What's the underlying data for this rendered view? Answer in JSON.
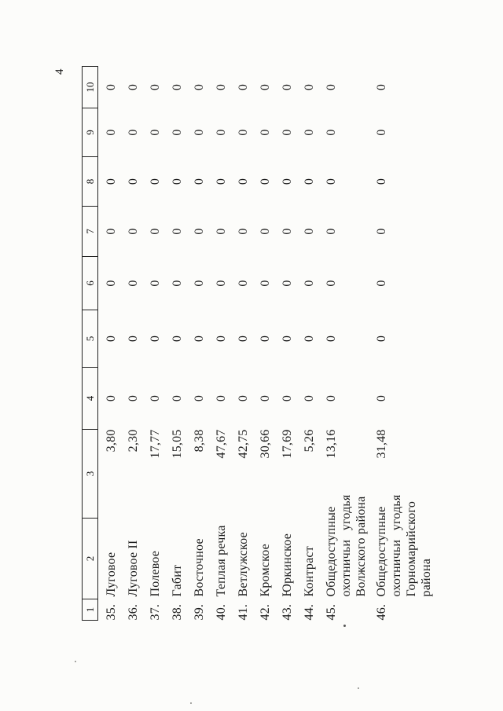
{
  "page": {
    "number": "4"
  },
  "table": {
    "column_headers": [
      "1",
      "2",
      "3",
      "4",
      "5",
      "6",
      "7",
      "8",
      "9",
      "10"
    ],
    "rows": [
      {
        "num": "35.",
        "name": "Луговое",
        "area": "3,80",
        "zero_values": [
          "0",
          "0",
          "0",
          "0",
          "0",
          "0",
          "0"
        ]
      },
      {
        "num": "36.",
        "name": "Луговое II",
        "area": "2,30",
        "zero_values": [
          "0",
          "0",
          "0",
          "0",
          "0",
          "0",
          "0"
        ]
      },
      {
        "num": "37.",
        "name": "Полевое",
        "area": "17,77",
        "zero_values": [
          "0",
          "0",
          "0",
          "0",
          "0",
          "0",
          "0"
        ]
      },
      {
        "num": "38.",
        "name": "Габит",
        "area": "15,05",
        "zero_values": [
          "0",
          "0",
          "0",
          "0",
          "0",
          "0",
          "0"
        ]
      },
      {
        "num": "39.",
        "name": "Восточное",
        "area": "8,38",
        "zero_values": [
          "0",
          "0",
          "0",
          "0",
          "0",
          "0",
          "0"
        ]
      },
      {
        "num": "40.",
        "name": "Теплая речка",
        "area": "47,67",
        "zero_values": [
          "0",
          "0",
          "0",
          "0",
          "0",
          "0",
          "0"
        ]
      },
      {
        "num": "41.",
        "name": "Ветлужское",
        "area": "42,75",
        "zero_values": [
          "0",
          "0",
          "0",
          "0",
          "0",
          "0",
          "0"
        ]
      },
      {
        "num": "42.",
        "name": "Кромское",
        "area": "30,66",
        "zero_values": [
          "0",
          "0",
          "0",
          "0",
          "0",
          "0",
          "0"
        ]
      },
      {
        "num": "43.",
        "name": "Юркинское",
        "area": "17,69",
        "zero_values": [
          "0",
          "0",
          "0",
          "0",
          "0",
          "0",
          "0"
        ]
      },
      {
        "num": "44.",
        "name": "Контраст",
        "area": "5,26",
        "zero_values": [
          "0",
          "0",
          "0",
          "0",
          "0",
          "0",
          "0"
        ]
      },
      {
        "num": "45.",
        "name": "Общедоступные охотничьи угодья Волжского района",
        "area": "13,16",
        "zero_values": [
          "0",
          "0",
          "0",
          "0",
          "0",
          "0",
          "0"
        ]
      },
      {
        "num": "46.",
        "name": "Общедоступные охотничьи угодья Горномарийского района",
        "area": "31,48",
        "zero_values": [
          "0",
          "0",
          "0",
          "0",
          "0",
          "0",
          "0"
        ]
      }
    ]
  }
}
